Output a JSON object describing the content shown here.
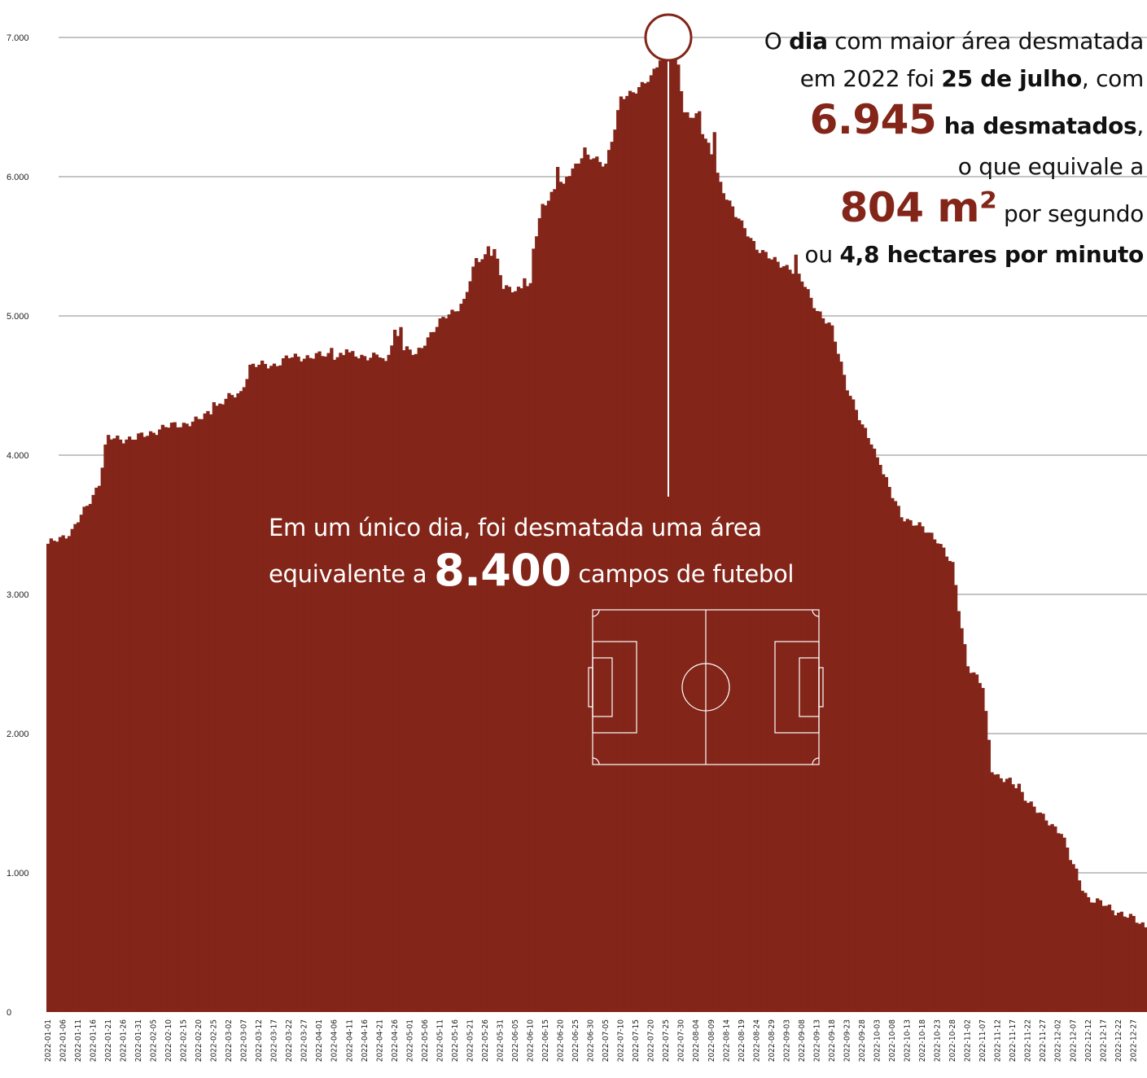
{
  "chart_data": {
    "type": "bar",
    "x_start": "2022-01-01",
    "x_end": "2022-12-31",
    "x_tick_labels": [
      "2022-01-01",
      "2022-01-06",
      "2022-01-11",
      "2022-01-16",
      "2022-01-21",
      "2022-01-26",
      "2022-01-31",
      "2022-02-05",
      "2022-02-10",
      "2022-02-15",
      "2022-02-20",
      "2022-02-25",
      "2022-03-02",
      "2022-03-07",
      "2022-03-12",
      "2022-03-17",
      "2022-03-22",
      "2022-03-27",
      "2022-04-01",
      "2022-04-06",
      "2022-04-11",
      "2022-04-16",
      "2022-04-21",
      "2022-04-26",
      "2022-05-01",
      "2022-05-06",
      "2022-05-11",
      "2022-05-16",
      "2022-05-21",
      "2022-05-26",
      "2022-05-31",
      "2022-06-05",
      "2022-06-10",
      "2022-06-15",
      "2022-06-20",
      "2022-06-25",
      "2022-06-30",
      "2022-07-05",
      "2022-07-10",
      "2022-07-15",
      "2022-07-20",
      "2022-07-25",
      "2022-07-30",
      "2022-08-04",
      "2022-08-09",
      "2022-08-14",
      "2022-08-19",
      "2022-08-24",
      "2022-08-29",
      "2022-09-03",
      "2022-09-08",
      "2022-09-13",
      "2022-09-18",
      "2022-09-23",
      "2022-09-28",
      "2022-10-03",
      "2022-10-08",
      "2022-10-13",
      "2022-10-18",
      "2022-10-23",
      "2022-10-28",
      "2022-11-02",
      "2022-11-07",
      "2022-11-12",
      "2022-11-17",
      "2022-11-22",
      "2022-11-27",
      "2022-12-02",
      "2022-12-07",
      "2022-12-12",
      "2022-12-17",
      "2022-12-22",
      "2022-12-27"
    ],
    "y_ticks": [
      0,
      1000,
      2000,
      3000,
      4000,
      5000,
      6000,
      7000
    ],
    "y_tick_labels": [
      "0",
      "1.000",
      "2.000",
      "3.000",
      "4.000",
      "5.000",
      "6.000",
      "7.000"
    ],
    "ylim": [
      0,
      7000
    ],
    "grid": true,
    "color": "#832519",
    "keypoints": [
      [
        "2022-01-01",
        3350
      ],
      [
        "2022-01-04",
        3400
      ],
      [
        "2022-01-09",
        3450
      ],
      [
        "2022-01-13",
        3600
      ],
      [
        "2022-01-18",
        3800
      ],
      [
        "2022-01-20",
        4050
      ],
      [
        "2022-01-21",
        4120
      ],
      [
        "2022-01-30",
        4120
      ],
      [
        "2022-02-03",
        4150
      ],
      [
        "2022-02-07",
        4190
      ],
      [
        "2022-02-20",
        4250
      ],
      [
        "2022-03-01",
        4400
      ],
      [
        "2022-03-06",
        4450
      ],
      [
        "2022-03-09",
        4640
      ],
      [
        "2022-03-17",
        4650
      ],
      [
        "2022-03-22",
        4700
      ],
      [
        "2022-04-06",
        4720
      ],
      [
        "2022-04-21",
        4710
      ],
      [
        "2022-04-23",
        4650
      ],
      [
        "2022-04-26",
        4900
      ],
      [
        "2022-04-29",
        4760
      ],
      [
        "2022-05-03",
        4720
      ],
      [
        "2022-05-06",
        4820
      ],
      [
        "2022-05-13",
        5000
      ],
      [
        "2022-05-19",
        5100
      ],
      [
        "2022-05-23",
        5400
      ],
      [
        "2022-05-29",
        5470
      ],
      [
        "2022-06-01",
        5200
      ],
      [
        "2022-06-07",
        5200
      ],
      [
        "2022-06-10",
        5200
      ],
      [
        "2022-06-11",
        5480
      ],
      [
        "2022-06-14",
        5800
      ],
      [
        "2022-06-22",
        6000
      ],
      [
        "2022-06-27",
        6150
      ],
      [
        "2022-07-05",
        6100
      ],
      [
        "2022-07-08",
        6350
      ],
      [
        "2022-07-10",
        6550
      ],
      [
        "2022-07-16",
        6650
      ],
      [
        "2022-07-20",
        6700
      ],
      [
        "2022-07-23",
        6850
      ],
      [
        "2022-07-25",
        6945
      ],
      [
        "2022-07-29",
        6800
      ],
      [
        "2022-07-31",
        6440
      ],
      [
        "2022-08-04",
        6450
      ],
      [
        "2022-08-09",
        6150
      ],
      [
        "2022-08-12",
        5950
      ],
      [
        "2022-08-19",
        5650
      ],
      [
        "2022-08-24",
        5500
      ],
      [
        "2022-08-29",
        5400
      ],
      [
        "2022-09-04",
        5350
      ],
      [
        "2022-09-08",
        5250
      ],
      [
        "2022-09-13",
        5050
      ],
      [
        "2022-09-18",
        4900
      ],
      [
        "2022-09-23",
        4500
      ],
      [
        "2022-09-28",
        4200
      ],
      [
        "2022-10-01",
        4100
      ],
      [
        "2022-10-08",
        3700
      ],
      [
        "2022-10-11",
        3570
      ],
      [
        "2022-10-18",
        3470
      ],
      [
        "2022-10-23",
        3400
      ],
      [
        "2022-10-28",
        3200
      ],
      [
        "2022-10-30",
        2900
      ],
      [
        "2022-11-02",
        2500
      ],
      [
        "2022-11-07",
        2330
      ],
      [
        "2022-11-10",
        1750
      ],
      [
        "2022-11-12",
        1700
      ],
      [
        "2022-11-16",
        1650
      ],
      [
        "2022-11-19",
        1600
      ],
      [
        "2022-11-23",
        1500
      ],
      [
        "2022-11-27",
        1390
      ],
      [
        "2022-12-03",
        1300
      ],
      [
        "2022-12-06",
        1100
      ],
      [
        "2022-12-10",
        900
      ],
      [
        "2022-12-12",
        820
      ],
      [
        "2022-12-16",
        780
      ],
      [
        "2022-12-22",
        720
      ],
      [
        "2022-12-31",
        620
      ]
    ],
    "spikes": [
      [
        "2022-02-25",
        4380
      ],
      [
        "2022-04-05",
        4770
      ],
      [
        "2022-04-10",
        4760
      ],
      [
        "2022-04-28",
        4920
      ],
      [
        "2022-05-27",
        5500
      ],
      [
        "2022-06-08",
        5270
      ],
      [
        "2022-06-19",
        6070
      ],
      [
        "2022-06-21",
        5950
      ],
      [
        "2022-06-28",
        6210
      ],
      [
        "2022-07-26",
        6860
      ],
      [
        "2022-07-28",
        6880
      ],
      [
        "2022-08-05",
        6470
      ],
      [
        "2022-08-10",
        6320
      ],
      [
        "2022-08-17",
        5710
      ],
      [
        "2022-09-06",
        5440
      ],
      [
        "2022-10-04",
        3930
      ],
      [
        "2022-11-19",
        1640
      ]
    ],
    "peak": {
      "x": "2022-07-25",
      "y": 6945
    }
  },
  "annotation_top": {
    "l1_a": "O ",
    "l1_b": "dia",
    "l1_c": " com maior área desmatada",
    "l2_a": "em 2022 foi ",
    "l2_b": "25 de julho",
    "l2_c": ", com",
    "l3_big": "6.945",
    "l3_b": " ha desmatados",
    "l3_c": ",",
    "l4": "o que equivale a",
    "l5_big": "804 m²",
    "l5_c": " por segundo",
    "l6_a": "ou ",
    "l6_b": "4,8 hectares por minuto"
  },
  "annotation_mid": {
    "l1": "Em um único dia, foi desmatada uma área",
    "l2_a": "equivalente a ",
    "l2_big": "8.400",
    "l2_c": " campos de futebol"
  }
}
